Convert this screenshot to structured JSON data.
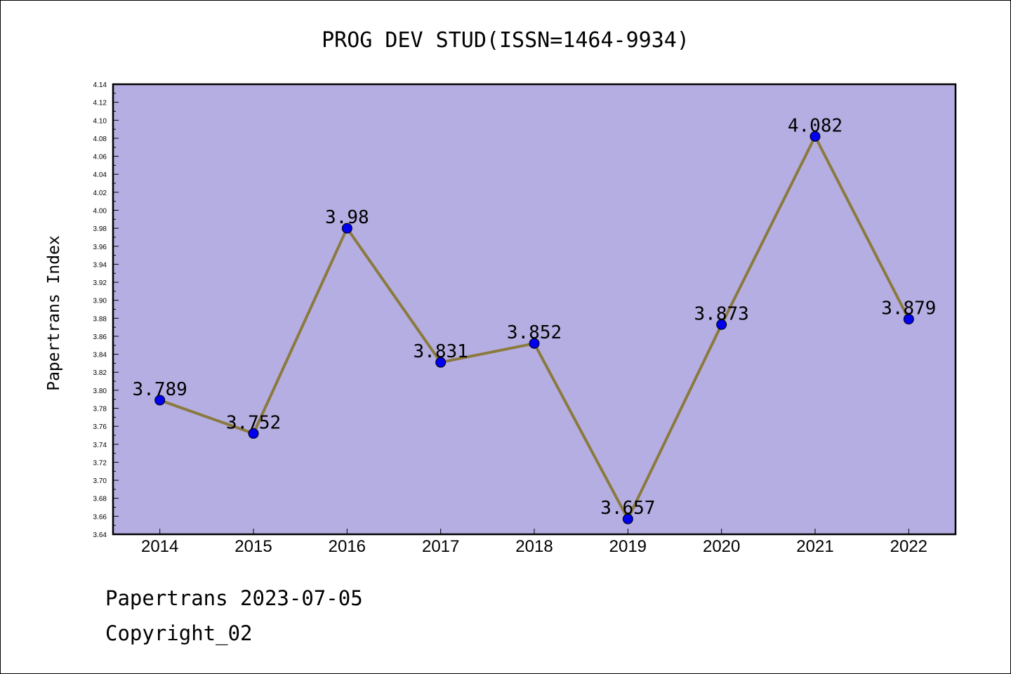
{
  "chart_data": {
    "type": "line",
    "title": "PROG DEV STUD(ISSN=1464-9934)",
    "xlabel": "",
    "ylabel": "Papertrans Index",
    "categories": [
      "2014",
      "2015",
      "2016",
      "2017",
      "2018",
      "2019",
      "2020",
      "2021",
      "2022"
    ],
    "series": [
      {
        "values": [
          3.789,
          3.752,
          3.98,
          3.831,
          3.852,
          3.657,
          3.873,
          4.082,
          3.879
        ],
        "labels": [
          "3.789",
          "3.752",
          "3.98",
          "3.831",
          "3.852",
          "3.657",
          "3.873",
          "4.082",
          "3.879"
        ]
      }
    ],
    "ylim": [
      3.64,
      4.14
    ],
    "yticks": [
      "3.64",
      "3.66",
      "3.68",
      "3.70",
      "3.72",
      "3.74",
      "3.76",
      "3.78",
      "3.80",
      "3.82",
      "3.84",
      "3.86",
      "3.88",
      "3.90",
      "3.92",
      "3.94",
      "3.96",
      "3.98",
      "4.00",
      "4.02",
      "4.04",
      "4.06",
      "4.08",
      "4.10",
      "4.12",
      "4.14"
    ],
    "grid": false,
    "colors": {
      "plot_bg": "#b5aee2",
      "line": "#8b7a3e",
      "marker": "#0000ee"
    }
  },
  "footer": {
    "source": "Papertrans 2023-07-05",
    "copyright": "Copyright_02"
  }
}
